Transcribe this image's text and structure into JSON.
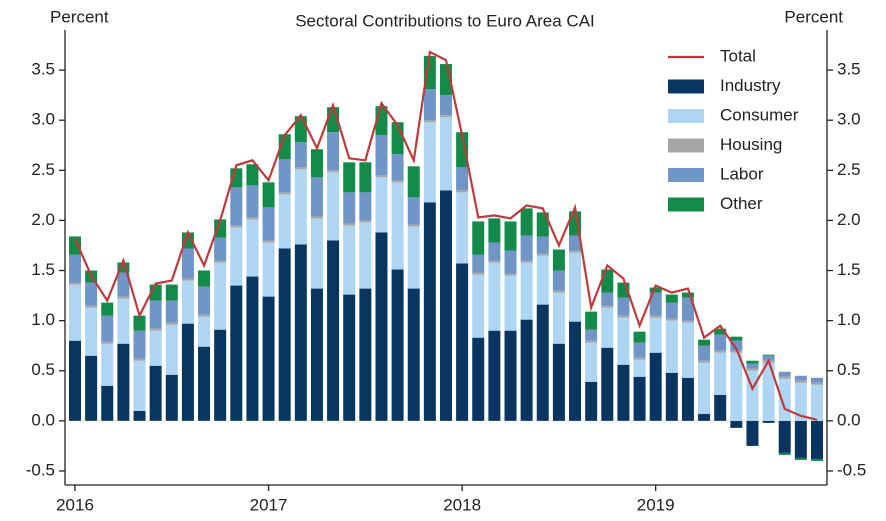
{
  "chart_data": {
    "type": "bar",
    "title": "Sectoral Contributions to Euro Area CAI",
    "y_label": "Percent",
    "y2_label": "Percent",
    "stacked": true,
    "categories": [
      "2016",
      null,
      null,
      null,
      null,
      null,
      null,
      null,
      null,
      null,
      null,
      null,
      "2017",
      null,
      null,
      null,
      null,
      null,
      null,
      null,
      null,
      null,
      null,
      null,
      "2018",
      null,
      null,
      null,
      null,
      null,
      null,
      null,
      null,
      null,
      null,
      null,
      "2019",
      null,
      null,
      null,
      null,
      null,
      null,
      null,
      null,
      null,
      null
    ],
    "series": [
      {
        "name": "Total",
        "type": "line",
        "color": "#c0393b",
        "values": [
          1.82,
          1.45,
          1.2,
          1.6,
          1.05,
          1.37,
          1.4,
          1.88,
          1.55,
          2.0,
          2.55,
          2.6,
          2.4,
          2.85,
          3.05,
          2.72,
          3.15,
          2.62,
          2.6,
          3.17,
          2.95,
          2.6,
          3.68,
          3.6,
          2.85,
          2.03,
          2.05,
          2.02,
          2.15,
          2.12,
          1.75,
          2.13,
          1.13,
          1.55,
          1.42,
          0.95,
          1.35,
          1.28,
          1.32,
          0.83,
          0.95,
          0.72,
          0.32,
          0.6,
          0.12,
          0.05,
          0.01
        ]
      },
      {
        "name": "Industry",
        "color": "#0a3560",
        "values": [
          0.8,
          0.65,
          0.35,
          0.77,
          0.1,
          0.55,
          0.46,
          0.97,
          0.74,
          0.91,
          1.35,
          1.44,
          1.24,
          1.72,
          1.76,
          1.32,
          1.8,
          1.26,
          1.32,
          1.88,
          1.51,
          1.32,
          2.18,
          2.3,
          1.57,
          0.83,
          0.9,
          0.9,
          1.01,
          1.16,
          0.77,
          0.99,
          0.39,
          0.73,
          0.56,
          0.44,
          0.68,
          0.48,
          0.43,
          0.07,
          0.26,
          -0.07,
          -0.25,
          -0.02,
          -0.32,
          -0.37,
          -0.38
        ]
      },
      {
        "name": "Consumer",
        "color": "#aed6f3",
        "values": [
          0.56,
          0.48,
          0.42,
          0.45,
          0.5,
          0.35,
          0.5,
          0.43,
          0.3,
          0.67,
          0.58,
          0.57,
          0.54,
          0.54,
          0.75,
          0.7,
          0.68,
          0.69,
          0.66,
          0.55,
          0.87,
          0.62,
          0.8,
          0.73,
          0.71,
          0.63,
          0.68,
          0.55,
          0.57,
          0.49,
          0.51,
          0.69,
          0.39,
          0.4,
          0.47,
          0.17,
          0.35,
          0.52,
          0.55,
          0.51,
          0.42,
          0.68,
          0.5,
          0.58,
          0.42,
          0.38,
          0.36
        ]
      },
      {
        "name": "Housing",
        "color": "#a6a6a6",
        "values": [
          0.02,
          0.02,
          0.02,
          0.02,
          0.02,
          0.02,
          0.02,
          0.02,
          0.02,
          0.02,
          0.02,
          0.02,
          0.02,
          0.02,
          0.02,
          0.02,
          0.02,
          0.02,
          0.02,
          0.02,
          0.02,
          0.02,
          0.02,
          0.02,
          0.02,
          0.02,
          0.02,
          0.02,
          0.02,
          0.02,
          0.02,
          0.02,
          0.02,
          0.02,
          0.02,
          0.02,
          0.02,
          0.02,
          0.02,
          0.02,
          0.02,
          0.02,
          0.02,
          0.02,
          0.02,
          0.02,
          0.02
        ]
      },
      {
        "name": "Labor",
        "color": "#7096c8",
        "values": [
          0.28,
          0.23,
          0.26,
          0.24,
          0.28,
          0.28,
          0.22,
          0.3,
          0.28,
          0.23,
          0.38,
          0.32,
          0.33,
          0.33,
          0.25,
          0.39,
          0.38,
          0.31,
          0.28,
          0.4,
          0.26,
          0.27,
          0.31,
          0.2,
          0.23,
          0.18,
          0.18,
          0.23,
          0.25,
          0.17,
          0.2,
          0.15,
          0.11,
          0.13,
          0.18,
          0.15,
          0.23,
          0.16,
          0.23,
          0.15,
          0.16,
          0.1,
          0.05,
          0.05,
          0.05,
          0.05,
          0.05
        ]
      },
      {
        "name": "Other",
        "color": "#138a4a",
        "values": [
          0.18,
          0.12,
          0.13,
          0.1,
          0.15,
          0.16,
          0.16,
          0.16,
          0.16,
          0.18,
          0.19,
          0.21,
          0.25,
          0.25,
          0.26,
          0.28,
          0.25,
          0.3,
          0.3,
          0.29,
          0.32,
          0.31,
          0.33,
          0.31,
          0.35,
          0.33,
          0.24,
          0.29,
          0.27,
          0.24,
          0.21,
          0.24,
          0.18,
          0.23,
          0.15,
          0.11,
          0.05,
          0.08,
          0.05,
          0.06,
          0.06,
          0.04,
          0.03,
          0.01,
          -0.02,
          -0.02,
          -0.02
        ]
      }
    ],
    "ylim": [
      -0.64,
      3.9
    ],
    "yticks": [
      -0.5,
      {
        "value": 0,
        "label": "0.0"
      },
      0.5,
      {
        "value": 1,
        "label": "1.0"
      },
      1.5,
      {
        "value": 2,
        "label": "2.0"
      },
      2.5,
      {
        "value": 3,
        "label": "3.0"
      },
      3.5
    ],
    "y2lim": [
      -0.64,
      3.9
    ],
    "y2ticks": [
      -0.5,
      {
        "value": 0,
        "label": "0.0"
      },
      0.5,
      {
        "value": 1,
        "label": "1.0"
      },
      1.5,
      {
        "value": 2,
        "label": "2.0"
      },
      2.5,
      {
        "value": 3,
        "label": "3.0"
      },
      3.5
    ],
    "grid": false,
    "legend": "upper right"
  }
}
